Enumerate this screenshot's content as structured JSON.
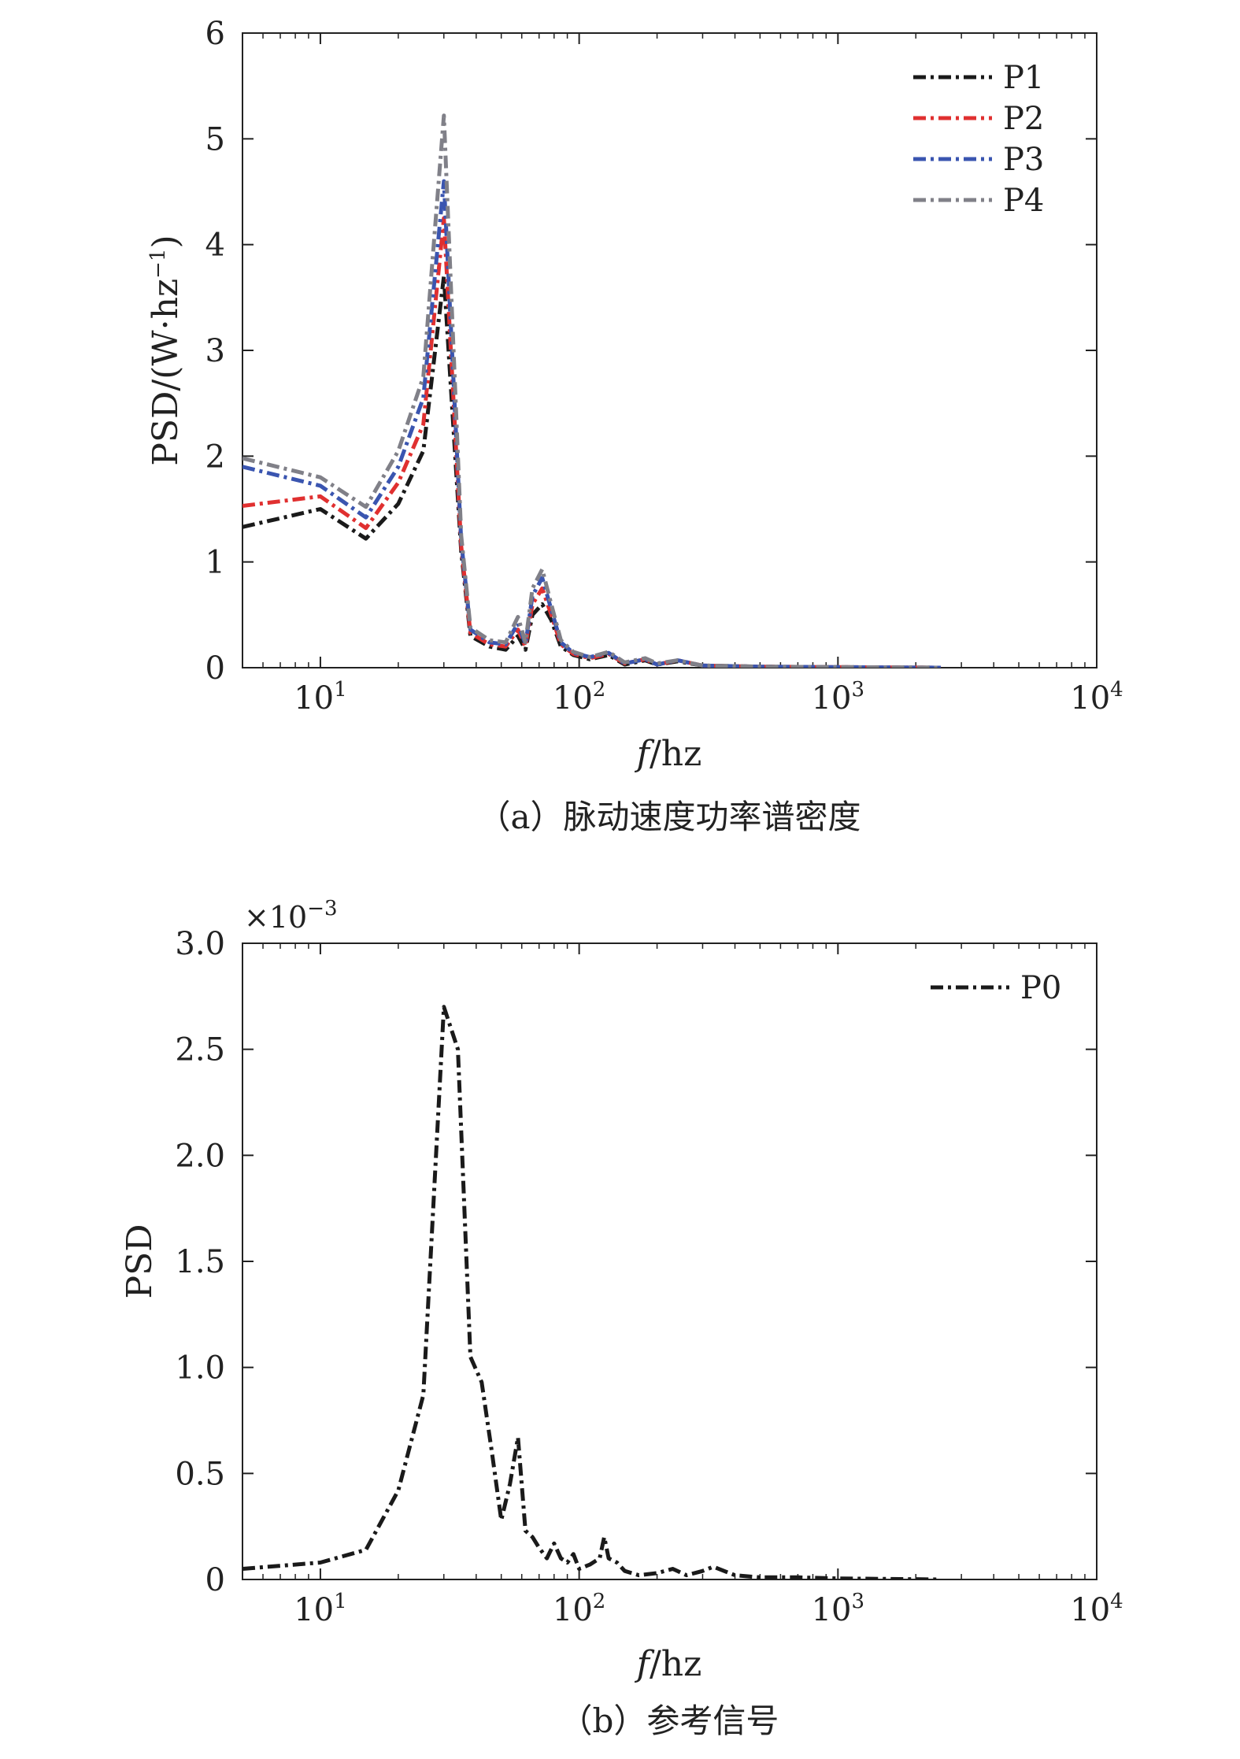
{
  "chart_data": [
    {
      "panel": "a",
      "type": "line",
      "title": "",
      "caption": "（a）脉动速度功率谱密度",
      "xlabel_italic": "f",
      "xlabel_rest": "/hz",
      "ylabel_main": "PSD/(W·hz",
      "ylabel_sup": "−1",
      "ylabel_close": ")",
      "xscale": "log",
      "xlim": [
        5,
        10000
      ],
      "ylim": [
        0,
        6
      ],
      "xticks": [
        {
          "value": 10,
          "base": "10",
          "exp": "1"
        },
        {
          "value": 100,
          "base": "10",
          "exp": "2"
        },
        {
          "value": 1000,
          "base": "10",
          "exp": "3"
        },
        {
          "value": 10000,
          "base": "10",
          "exp": "4"
        }
      ],
      "yticks": [
        {
          "value": 0,
          "label": "0"
        },
        {
          "value": 1,
          "label": "1"
        },
        {
          "value": 2,
          "label": "2"
        },
        {
          "value": 3,
          "label": "3"
        },
        {
          "value": 4,
          "label": "4"
        },
        {
          "value": 5,
          "label": "5"
        },
        {
          "value": 6,
          "label": "6"
        }
      ],
      "legend_position": "top-right",
      "series": [
        {
          "name": "P1",
          "color": "#1a1a1a",
          "x": [
            5,
            10,
            15,
            20,
            25,
            30,
            35,
            38,
            45,
            52,
            58,
            62,
            66,
            72,
            78,
            85,
            95,
            110,
            130,
            150,
            180,
            200,
            240,
            300,
            500,
            1000,
            2500
          ],
          "y": [
            1.33,
            1.5,
            1.22,
            1.55,
            2.05,
            3.7,
            1.1,
            0.3,
            0.2,
            0.17,
            0.3,
            0.17,
            0.5,
            0.6,
            0.45,
            0.2,
            0.12,
            0.08,
            0.12,
            0.03,
            0.07,
            0.03,
            0.06,
            0.02,
            0.01,
            0.005,
            0.0
          ]
        },
        {
          "name": "P2",
          "color": "#e03030",
          "x": [
            5,
            10,
            15,
            20,
            25,
            30,
            35,
            38,
            45,
            52,
            58,
            62,
            66,
            72,
            78,
            85,
            95,
            110,
            130,
            150,
            180,
            200,
            240,
            300,
            500,
            1000,
            2500
          ],
          "y": [
            1.53,
            1.62,
            1.32,
            1.75,
            2.3,
            4.25,
            1.15,
            0.33,
            0.22,
            0.2,
            0.36,
            0.2,
            0.6,
            0.75,
            0.5,
            0.22,
            0.13,
            0.09,
            0.13,
            0.04,
            0.08,
            0.03,
            0.07,
            0.02,
            0.01,
            0.005,
            0.0
          ]
        },
        {
          "name": "P3",
          "color": "#3a55b0",
          "x": [
            5,
            10,
            15,
            20,
            25,
            30,
            35,
            38,
            45,
            52,
            58,
            62,
            66,
            72,
            78,
            85,
            95,
            110,
            130,
            150,
            180,
            200,
            240,
            300,
            500,
            1000,
            2500
          ],
          "y": [
            1.9,
            1.72,
            1.42,
            1.9,
            2.55,
            4.6,
            1.2,
            0.36,
            0.24,
            0.22,
            0.42,
            0.22,
            0.68,
            0.85,
            0.55,
            0.24,
            0.14,
            0.1,
            0.14,
            0.04,
            0.08,
            0.03,
            0.07,
            0.02,
            0.01,
            0.005,
            0.0
          ]
        },
        {
          "name": "P4",
          "color": "#808088",
          "x": [
            5,
            10,
            15,
            20,
            25,
            30,
            35,
            38,
            45,
            52,
            58,
            62,
            66,
            72,
            78,
            85,
            95,
            110,
            130,
            150,
            180,
            200,
            240,
            300,
            500,
            1000,
            2500
          ],
          "y": [
            1.98,
            1.8,
            1.52,
            2.05,
            2.75,
            5.22,
            1.25,
            0.38,
            0.26,
            0.24,
            0.48,
            0.24,
            0.75,
            0.93,
            0.6,
            0.26,
            0.15,
            0.1,
            0.15,
            0.05,
            0.09,
            0.04,
            0.07,
            0.02,
            0.01,
            0.005,
            0.0
          ]
        }
      ]
    },
    {
      "panel": "b",
      "type": "line",
      "title": "",
      "caption": "（b）参考信号",
      "xlabel_italic": "f",
      "xlabel_rest": "/hz",
      "ylabel": "PSD",
      "scale_note_base": "×10",
      "scale_note_exp": "−3",
      "xscale": "log",
      "xlim": [
        5,
        10000
      ],
      "ylim": [
        0,
        3.0
      ],
      "xticks": [
        {
          "value": 10,
          "base": "10",
          "exp": "1"
        },
        {
          "value": 100,
          "base": "10",
          "exp": "2"
        },
        {
          "value": 1000,
          "base": "10",
          "exp": "3"
        },
        {
          "value": 10000,
          "base": "10",
          "exp": "4"
        }
      ],
      "yticks": [
        {
          "value": 0,
          "label": "0"
        },
        {
          "value": 0.5,
          "label": "0.5"
        },
        {
          "value": 1.0,
          "label": "1.0"
        },
        {
          "value": 1.5,
          "label": "1.5"
        },
        {
          "value": 2.0,
          "label": "2.0"
        },
        {
          "value": 2.5,
          "label": "2.5"
        },
        {
          "value": 3.0,
          "label": "3.0"
        }
      ],
      "legend_position": "top-right",
      "series": [
        {
          "name": "P0",
          "color": "#1a1a1a",
          "x": [
            5,
            10,
            15,
            20,
            25,
            30,
            34,
            38,
            42,
            46,
            50,
            54,
            58,
            62,
            66,
            70,
            75,
            80,
            85,
            90,
            95,
            100,
            110,
            120,
            125,
            130,
            140,
            150,
            170,
            200,
            230,
            260,
            300,
            330,
            400,
            500,
            700,
            1000,
            2500
          ],
          "y": [
            0.05,
            0.08,
            0.14,
            0.42,
            0.87,
            2.7,
            2.5,
            1.05,
            0.93,
            0.6,
            0.28,
            0.45,
            0.67,
            0.23,
            0.2,
            0.15,
            0.1,
            0.17,
            0.1,
            0.08,
            0.12,
            0.05,
            0.07,
            0.1,
            0.2,
            0.1,
            0.08,
            0.04,
            0.02,
            0.03,
            0.05,
            0.02,
            0.04,
            0.06,
            0.02,
            0.01,
            0.01,
            0.005,
            0.0
          ]
        }
      ]
    }
  ]
}
